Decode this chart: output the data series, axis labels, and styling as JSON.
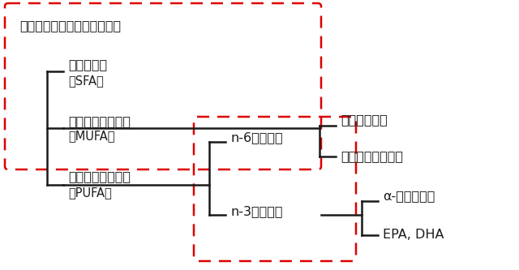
{
  "bg_color": "#ffffff",
  "line_color": "#1a1a1a",
  "dashed_box_color": "#dd0000",
  "text_color": "#1a1a1a",
  "labels": {
    "title": "脂質（脂肪エネルギー比率）",
    "sfa": "飽和脂肪酸",
    "sfa_sub": "（SFA）",
    "mufa": "一価不飽和脂肪酸",
    "mufa_sub": "（MUFA）",
    "pufa": "多価不飽和脂肪酸",
    "pufa_sub": "（PUFA）",
    "n6": "n-6系脂肪酸",
    "n3": "n-3系脂肪酸",
    "cis": "シス型脂肪酸",
    "trans": "トランス型脂肪酸",
    "alpha": "α-リノレン酸",
    "epa": "EPA, DHA"
  }
}
